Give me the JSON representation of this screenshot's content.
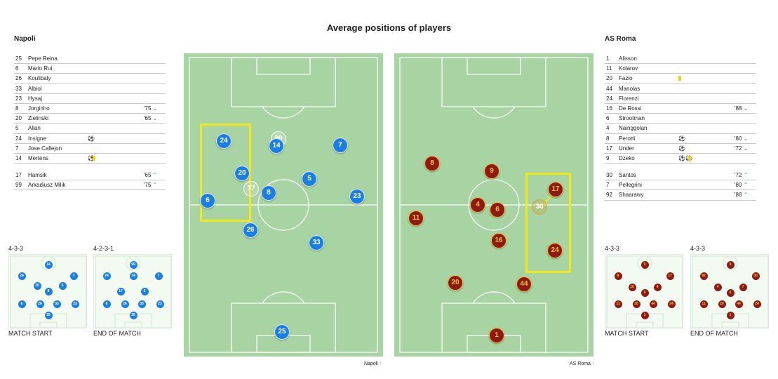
{
  "page": {
    "title": "Average positions of players"
  },
  "napoli": {
    "team_label": "Napoli",
    "footer_label": "Napoli",
    "starters": [
      {
        "num": "25",
        "name": "Pepe Reina"
      },
      {
        "num": "6",
        "name": "Mario Rui"
      },
      {
        "num": "26",
        "name": "Koulibaly"
      },
      {
        "num": "33",
        "name": "Albiol"
      },
      {
        "num": "23",
        "name": "Hysaj"
      },
      {
        "num": "8",
        "name": "Jorginho",
        "sub": "'75"
      },
      {
        "num": "20",
        "name": "Zielinski",
        "sub": "'65"
      },
      {
        "num": "5",
        "name": "Allan"
      },
      {
        "num": "24",
        "name": "Insigne",
        "events": "⚽"
      },
      {
        "num": "7",
        "name": "Jose Callejon"
      },
      {
        "num": "14",
        "name": "Mertens",
        "events": "⚽"
      }
    ],
    "subs": [
      {
        "num": "17",
        "name": "Hamsik",
        "sub": "'65"
      },
      {
        "num": "99",
        "name": "Arkadiusz Milik",
        "sub": "'75"
      }
    ],
    "formation_start": "4-3-3",
    "formation_end": "4-2-3-1",
    "caption_start": "MATCH START",
    "caption_end": "END OF MATCH"
  },
  "roma": {
    "team_label": "AS Roma",
    "footer_label": "AS Roma",
    "starters": [
      {
        "num": "1",
        "name": "Alisson"
      },
      {
        "num": "11",
        "name": "Kolarov"
      },
      {
        "num": "20",
        "name": "Fazio"
      },
      {
        "num": "44",
        "name": "Manolas"
      },
      {
        "num": "24",
        "name": "Florenzi"
      },
      {
        "num": "16",
        "name": "De Rossi",
        "sub": "'88"
      },
      {
        "num": "6",
        "name": "Strootman"
      },
      {
        "num": "4",
        "name": "Nainggolan"
      },
      {
        "num": "8",
        "name": "Perotti",
        "events": "⚽",
        "sub": "'80"
      },
      {
        "num": "17",
        "name": "Under",
        "events": "⚽",
        "sub": "'72"
      },
      {
        "num": "9",
        "name": "Dzeko",
        "events": "⚽⚽"
      }
    ],
    "subs": [
      {
        "num": "30",
        "name": "Santos",
        "sub": "'72"
      },
      {
        "num": "7",
        "name": "Pellegrini",
        "sub": "'80"
      },
      {
        "num": "92",
        "name": "Shaarawy",
        "sub": "'88"
      }
    ],
    "formation_start": "4-3-3",
    "formation_end": "4-3-3",
    "caption_start": "MATCH START",
    "caption_end": "END OF MATCH"
  },
  "napoli_pitch_players": [
    "24",
    "99",
    "14",
    "7",
    "20",
    "5",
    "17",
    "8",
    "23",
    "6",
    "26",
    "33",
    "25"
  ],
  "roma_pitch_players": [
    "8",
    "9",
    "17",
    "30",
    "4",
    "6",
    "11",
    "16",
    "24",
    "20",
    "44",
    "1"
  ],
  "napoli_mini_start": [
    "14",
    "24",
    "7",
    "20",
    "5",
    "8",
    "6",
    "26",
    "33",
    "23",
    "25"
  ],
  "napoli_mini_end": [
    "99",
    "24",
    "14",
    "7",
    "17",
    "5",
    "6",
    "26",
    "33",
    "23",
    "25"
  ],
  "roma_mini_start": [
    "9",
    "8",
    "17",
    "16",
    "4",
    "6",
    "11",
    "20",
    "44",
    "24",
    "1"
  ],
  "roma_mini_end": [
    "9",
    "92",
    "30",
    "4",
    "7",
    "6",
    "11",
    "20",
    "44",
    "24",
    "1"
  ],
  "colors": {
    "napoli": "#1a7ee2",
    "roma": "#8e1a14",
    "roma_text": "#f4c233",
    "pitch": "#a8d3a2",
    "highlight": "#f2e81a"
  }
}
